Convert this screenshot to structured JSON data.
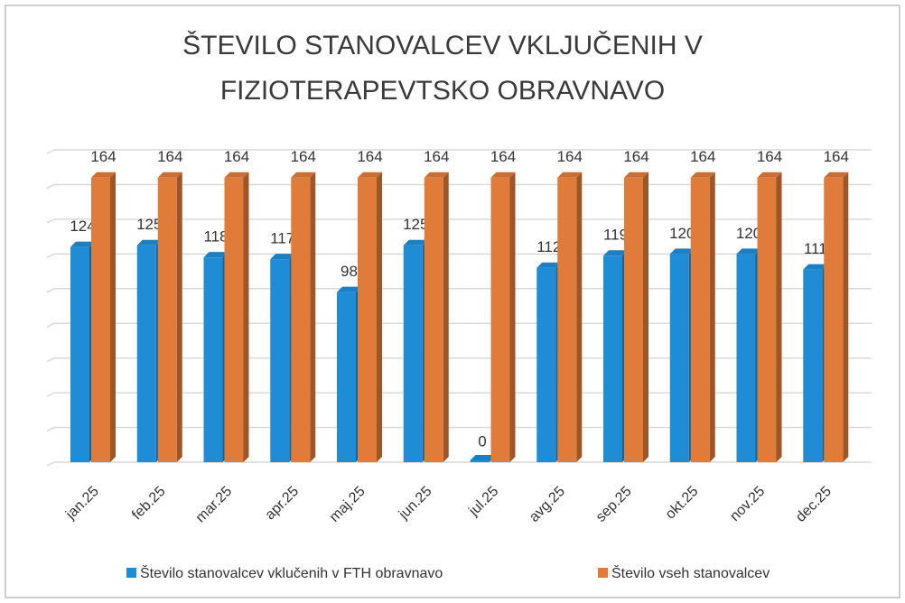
{
  "chart_data": {
    "type": "bar",
    "title": [
      "ŠTEVILO STANOVALCEV VKLJUČENIH V",
      "FIZIOTERAPEVTSKO OBRAVNAVO"
    ],
    "categories": [
      "jan.25",
      "feb.25",
      "mar.25",
      "apr.25",
      "maj.25",
      "jun.25",
      "jul.25",
      "avg.25",
      "sep.25",
      "okt.25",
      "nov.25",
      "dec.25"
    ],
    "series": [
      {
        "name": "Število stanovalcev vklučenih v FTH obravnavo",
        "color": "#1f8dd6",
        "values": [
          124,
          125,
          118,
          117,
          98,
          125,
          0,
          112,
          119,
          120,
          120,
          111
        ]
      },
      {
        "name": "Število vseh stanovalcev",
        "color": "#e07b39",
        "values": [
          164,
          164,
          164,
          164,
          164,
          164,
          164,
          164,
          164,
          164,
          164,
          164
        ]
      }
    ],
    "ylim": [
      0,
      180
    ],
    "yticks": [
      0,
      20,
      40,
      60,
      80,
      100,
      120,
      140,
      160,
      180
    ],
    "grid": true,
    "legend": "bottom"
  }
}
